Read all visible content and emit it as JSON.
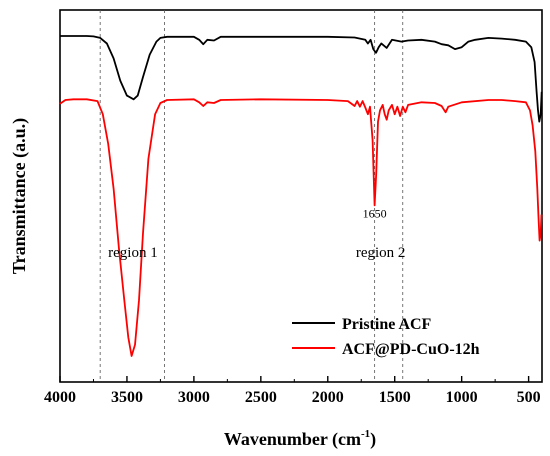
{
  "chart_data": {
    "type": "line",
    "xlabel": "Wavenumber (cm",
    "xlabel_sup": "-1",
    "xlabel_close": ")",
    "ylabel": "Transmittance (a.u.)",
    "xlim": [
      4000,
      400
    ],
    "x_reversed": true,
    "ylim": [
      0,
      1
    ],
    "y_ticks_labeled": false,
    "x_ticks": [
      4000,
      3500,
      3000,
      2500,
      2000,
      1500,
      1000,
      500
    ],
    "region_lines": [
      3700,
      3220,
      1650,
      1440
    ],
    "annotations": [
      {
        "text": "region 1",
        "x": 3270,
        "y": 0.336
      },
      {
        "text": "1650",
        "x": 1650,
        "y": 0.442
      },
      {
        "text": "region 2",
        "x": 1420,
        "y": 0.336
      }
    ],
    "legend_position": "bottom-right",
    "series": [
      {
        "name": "Pristine ACF",
        "color": "#000000",
        "points": [
          [
            4000,
            0.93
          ],
          [
            3800,
            0.93
          ],
          [
            3750,
            0.929
          ],
          [
            3700,
            0.925
          ],
          [
            3650,
            0.91
          ],
          [
            3600,
            0.87
          ],
          [
            3550,
            0.81
          ],
          [
            3500,
            0.77
          ],
          [
            3450,
            0.76
          ],
          [
            3420,
            0.77
          ],
          [
            3380,
            0.82
          ],
          [
            3330,
            0.88
          ],
          [
            3280,
            0.915
          ],
          [
            3250,
            0.925
          ],
          [
            3200,
            0.928
          ],
          [
            3000,
            0.928
          ],
          [
            2960,
            0.92
          ],
          [
            2930,
            0.908
          ],
          [
            2900,
            0.92
          ],
          [
            2850,
            0.918
          ],
          [
            2800,
            0.928
          ],
          [
            2500,
            0.928
          ],
          [
            2000,
            0.928
          ],
          [
            1800,
            0.926
          ],
          [
            1720,
            0.92
          ],
          [
            1700,
            0.91
          ],
          [
            1680,
            0.92
          ],
          [
            1660,
            0.895
          ],
          [
            1640,
            0.885
          ],
          [
            1620,
            0.9
          ],
          [
            1600,
            0.91
          ],
          [
            1560,
            0.898
          ],
          [
            1520,
            0.92
          ],
          [
            1450,
            0.915
          ],
          [
            1400,
            0.918
          ],
          [
            1300,
            0.92
          ],
          [
            1200,
            0.915
          ],
          [
            1150,
            0.908
          ],
          [
            1100,
            0.905
          ],
          [
            1050,
            0.895
          ],
          [
            1000,
            0.9
          ],
          [
            950,
            0.915
          ],
          [
            900,
            0.92
          ],
          [
            800,
            0.925
          ],
          [
            700,
            0.923
          ],
          [
            600,
            0.92
          ],
          [
            520,
            0.915
          ],
          [
            480,
            0.9
          ],
          [
            455,
            0.86
          ],
          [
            440,
            0.78
          ],
          [
            430,
            0.73
          ],
          [
            420,
            0.7
          ],
          [
            410,
            0.72
          ],
          [
            402,
            0.78
          ]
        ]
      },
      {
        "name": "ACF@PD-CuO-12h",
        "color": "#ff0000",
        "points": [
          [
            4000,
            0.748
          ],
          [
            3960,
            0.758
          ],
          [
            3900,
            0.76
          ],
          [
            3800,
            0.76
          ],
          [
            3720,
            0.755
          ],
          [
            3680,
            0.72
          ],
          [
            3640,
            0.64
          ],
          [
            3600,
            0.52
          ],
          [
            3560,
            0.36
          ],
          [
            3520,
            0.22
          ],
          [
            3490,
            0.12
          ],
          [
            3465,
            0.07
          ],
          [
            3440,
            0.1
          ],
          [
            3410,
            0.22
          ],
          [
            3380,
            0.4
          ],
          [
            3340,
            0.6
          ],
          [
            3290,
            0.72
          ],
          [
            3250,
            0.75
          ],
          [
            3200,
            0.758
          ],
          [
            3000,
            0.76
          ],
          [
            2960,
            0.752
          ],
          [
            2930,
            0.742
          ],
          [
            2900,
            0.752
          ],
          [
            2850,
            0.75
          ],
          [
            2800,
            0.758
          ],
          [
            2500,
            0.76
          ],
          [
            2000,
            0.758
          ],
          [
            1850,
            0.755
          ],
          [
            1800,
            0.742
          ],
          [
            1780,
            0.755
          ],
          [
            1760,
            0.74
          ],
          [
            1740,
            0.755
          ],
          [
            1720,
            0.738
          ],
          [
            1700,
            0.72
          ],
          [
            1685,
            0.74
          ],
          [
            1665,
            0.65
          ],
          [
            1650,
            0.475
          ],
          [
            1638,
            0.56
          ],
          [
            1625,
            0.7
          ],
          [
            1610,
            0.73
          ],
          [
            1590,
            0.745
          ],
          [
            1575,
            0.72
          ],
          [
            1560,
            0.705
          ],
          [
            1545,
            0.73
          ],
          [
            1520,
            0.745
          ],
          [
            1500,
            0.72
          ],
          [
            1480,
            0.74
          ],
          [
            1460,
            0.715
          ],
          [
            1440,
            0.74
          ],
          [
            1420,
            0.725
          ],
          [
            1400,
            0.745
          ],
          [
            1300,
            0.752
          ],
          [
            1200,
            0.75
          ],
          [
            1150,
            0.742
          ],
          [
            1120,
            0.725
          ],
          [
            1100,
            0.74
          ],
          [
            1000,
            0.752
          ],
          [
            800,
            0.758
          ],
          [
            700,
            0.758
          ],
          [
            600,
            0.755
          ],
          [
            520,
            0.752
          ],
          [
            490,
            0.73
          ],
          [
            470,
            0.69
          ],
          [
            450,
            0.62
          ],
          [
            435,
            0.52
          ],
          [
            425,
            0.43
          ],
          [
            418,
            0.38
          ],
          [
            410,
            0.4
          ],
          [
            404,
            0.45
          ]
        ]
      }
    ]
  }
}
